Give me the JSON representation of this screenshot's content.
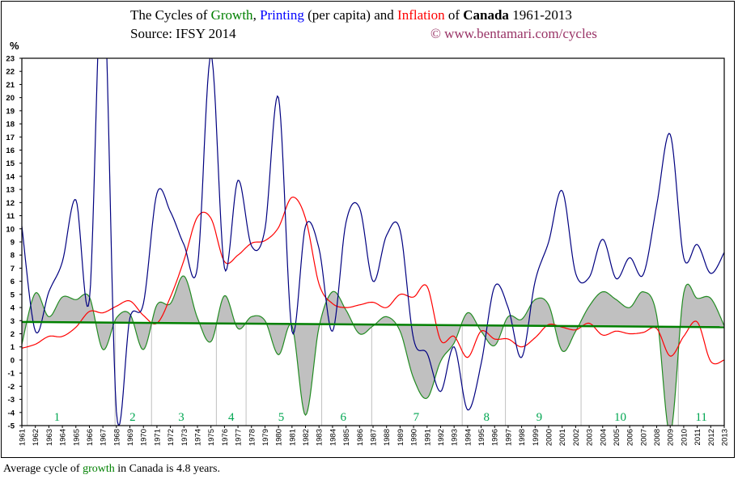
{
  "title": {
    "prefix": "The Cycles of ",
    "growth": "Growth",
    "sep": ", ",
    "printing": "Printing",
    "mid": " (per capita) and ",
    "inflation": "Inflation",
    "of": " of ",
    "country": "Canada",
    "years": " 1961-2013"
  },
  "source": "Source: IFSY 2014",
  "copyright": "© www.bentamari.com/cycles",
  "footer": {
    "prefix": "Average cycle of ",
    "growth": "growth",
    "suffix": " in Canada is 4.8 years."
  },
  "chart_data": {
    "type": "line",
    "ylabel": "%",
    "ylim": [
      -5,
      23
    ],
    "xlim": [
      1961,
      2013
    ],
    "grid": false,
    "colors": {
      "growth": "#228B22",
      "printing": "#000080",
      "inflation": "#ff0000",
      "trend": "#008000",
      "fill": "#c0c0c0",
      "cycle_lines": "#c0c0c0",
      "cycle_labels": "#00a651"
    },
    "x": [
      1961,
      1962,
      1963,
      1964,
      1965,
      1966,
      1967,
      1968,
      1969,
      1970,
      1971,
      1972,
      1973,
      1974,
      1975,
      1976,
      1977,
      1978,
      1979,
      1980,
      1981,
      1982,
      1983,
      1984,
      1985,
      1986,
      1987,
      1988,
      1989,
      1990,
      1991,
      1992,
      1993,
      1994,
      1995,
      1996,
      1997,
      1998,
      1999,
      2000,
      2001,
      2002,
      2003,
      2004,
      2005,
      2006,
      2007,
      2008,
      2009,
      2010,
      2011,
      2012,
      2013
    ],
    "series": [
      {
        "key": "growth",
        "values": [
          1.2,
          5.1,
          3.3,
          4.8,
          4.6,
          4.8,
          0.8,
          3.2,
          3.5,
          0.8,
          4.2,
          4.3,
          6.4,
          3.2,
          1.4,
          4.9,
          2.4,
          3.3,
          3.0,
          0.4,
          2.6,
          -4.2,
          2.5,
          5.2,
          3.8,
          2.0,
          2.6,
          3.3,
          2.2,
          -1.4,
          -2.9,
          -0.1,
          1.3,
          3.6,
          2.2,
          1.1,
          3.3,
          3.1,
          4.6,
          4.2,
          0.7,
          2.2,
          4.1,
          5.2,
          4.6,
          4.0,
          5.2,
          3.4,
          -5.6,
          5.1,
          4.7,
          4.7,
          2.6
        ]
      },
      {
        "key": "printing",
        "values": [
          10.2,
          2.2,
          5.2,
          7.5,
          12.2,
          4.6,
          30,
          -3.9,
          3.2,
          4.3,
          12.7,
          11.3,
          8.8,
          7.1,
          23.2,
          7.0,
          13.7,
          8.7,
          10.0,
          20.0,
          2.2,
          10.2,
          8.5,
          2.2,
          10.5,
          11.6,
          6.0,
          9.5,
          9.9,
          1.6,
          0.5,
          -2.4,
          1.0,
          -3.8,
          -0.3,
          5.6,
          4.0,
          0.2,
          6.0,
          9.0,
          12.9,
          6.6,
          6.3,
          9.2,
          6.2,
          7.8,
          6.5,
          11.8,
          17.2,
          7.8,
          8.8,
          6.6,
          8.2
        ]
      },
      {
        "key": "inflation",
        "values": [
          0.9,
          1.2,
          1.8,
          1.8,
          2.5,
          3.7,
          3.6,
          4.1,
          4.5,
          3.4,
          2.8,
          4.8,
          7.6,
          10.9,
          10.8,
          7.5,
          8.0,
          8.9,
          9.1,
          10.1,
          12.4,
          10.8,
          5.8,
          4.3,
          4.0,
          4.2,
          4.4,
          4.0,
          5.0,
          4.8,
          5.6,
          1.5,
          1.8,
          0.2,
          2.2,
          1.6,
          1.6,
          1.0,
          1.7,
          2.7,
          2.5,
          2.3,
          2.8,
          1.9,
          2.2,
          2.0,
          2.1,
          2.4,
          0.3,
          1.8,
          2.9,
          -0.1,
          0.0
        ]
      }
    ],
    "trend": {
      "start": [
        1961,
        2.9
      ],
      "end": [
        2013,
        2.5
      ]
    },
    "cycle_boundaries": [
      1961.4,
      1967.9,
      1970.6,
      1975.4,
      1977.6,
      1983.2,
      1986.9,
      1993.6,
      1996.8,
      2002.4,
      2009.6
    ],
    "cycle_labels": [
      {
        "label": "1",
        "x": 1963.6
      },
      {
        "label": "2",
        "x": 1969.2
      },
      {
        "label": "3",
        "x": 1972.8
      },
      {
        "label": "4",
        "x": 1976.5
      },
      {
        "label": "5",
        "x": 1980.2
      },
      {
        "label": "6",
        "x": 1984.8
      },
      {
        "label": "7",
        "x": 1990.2
      },
      {
        "label": "8",
        "x": 1995.4
      },
      {
        "label": "9",
        "x": 1999.3
      },
      {
        "label": "10",
        "x": 2005.3
      },
      {
        "label": "11",
        "x": 2011.3
      }
    ]
  }
}
